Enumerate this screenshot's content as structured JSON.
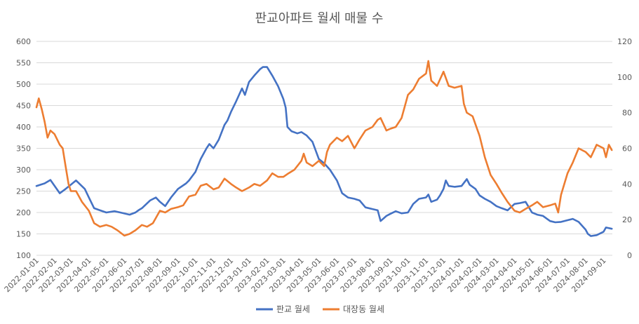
{
  "chart_data": {
    "type": "line",
    "title": "판교아파트 월세 매물 수",
    "xlabel": "",
    "ylabel": "",
    "y_left": {
      "min": 100,
      "max": 600,
      "ticks": [
        "100",
        "150",
        "200",
        "250",
        "300",
        "350",
        "400",
        "450",
        "500",
        "550",
        "600"
      ]
    },
    "y_right": {
      "min": 0,
      "max": 120,
      "ticks": [
        "0",
        "20",
        "40",
        "60",
        "80",
        "100",
        "120"
      ]
    },
    "x_ticks": [
      "2022-01-01",
      "2022-02-01",
      "2022-03-01",
      "2022-04-01",
      "2022-05-01",
      "2022-06-01",
      "2022-07-01",
      "2022-08-01",
      "2022-09-01",
      "2022-10-01",
      "2022-11-01",
      "2022-12-01",
      "2023-01-01",
      "2023-02-01",
      "2023-03-01",
      "2023-04-01",
      "2023-05-01",
      "2023-06-01",
      "2023-07-01",
      "2023-08-01",
      "2023-09-01",
      "2023-10-01",
      "2023-11-01",
      "2023-12-01",
      "2024-01-01",
      "2024-02-01",
      "2024-03-01",
      "2024-04-01",
      "2024-05-01",
      "2024-06-01",
      "2024-07-01",
      "2024-08-01",
      "2024-09-01"
    ],
    "grid": true,
    "legend_position": "bottom",
    "series": [
      {
        "name": "판교 월세",
        "axis": "left",
        "color": "#4472C4",
        "points": [
          [
            "2022-01-01",
            262
          ],
          [
            "2022-01-15",
            268
          ],
          [
            "2022-01-25",
            276
          ],
          [
            "2022-02-10",
            245
          ],
          [
            "2022-02-20",
            255
          ],
          [
            "2022-03-01",
            265
          ],
          [
            "2022-03-10",
            275
          ],
          [
            "2022-03-25",
            255
          ],
          [
            "2022-04-01",
            235
          ],
          [
            "2022-04-10",
            210
          ],
          [
            "2022-04-20",
            205
          ],
          [
            "2022-05-01",
            200
          ],
          [
            "2022-05-15",
            203
          ],
          [
            "2022-05-25",
            200
          ],
          [
            "2022-06-10",
            195
          ],
          [
            "2022-06-20",
            200
          ],
          [
            "2022-06-25",
            205
          ],
          [
            "2022-07-01",
            210
          ],
          [
            "2022-07-15",
            228
          ],
          [
            "2022-07-25",
            235
          ],
          [
            "2022-08-01",
            225
          ],
          [
            "2022-08-10",
            215
          ],
          [
            "2022-08-20",
            235
          ],
          [
            "2022-09-01",
            255
          ],
          [
            "2022-09-15",
            268
          ],
          [
            "2022-09-20",
            275
          ],
          [
            "2022-10-01",
            295
          ],
          [
            "2022-10-10",
            325
          ],
          [
            "2022-10-20",
            350
          ],
          [
            "2022-10-25",
            360
          ],
          [
            "2022-11-01",
            350
          ],
          [
            "2022-11-10",
            370
          ],
          [
            "2022-11-20",
            405
          ],
          [
            "2022-11-25",
            415
          ],
          [
            "2022-12-01",
            435
          ],
          [
            "2022-12-10",
            460
          ],
          [
            "2022-12-20",
            490
          ],
          [
            "2022-12-25",
            475
          ],
          [
            "2023-01-01",
            505
          ],
          [
            "2023-01-10",
            520
          ],
          [
            "2023-01-20",
            535
          ],
          [
            "2023-01-25",
            540
          ],
          [
            "2023-02-01",
            540
          ],
          [
            "2023-02-10",
            520
          ],
          [
            "2023-02-20",
            495
          ],
          [
            "2023-03-01",
            465
          ],
          [
            "2023-03-05",
            445
          ],
          [
            "2023-03-08",
            400
          ],
          [
            "2023-03-15",
            390
          ],
          [
            "2023-03-25",
            385
          ],
          [
            "2023-04-01",
            388
          ],
          [
            "2023-04-10",
            380
          ],
          [
            "2023-04-20",
            365
          ],
          [
            "2023-05-01",
            325
          ],
          [
            "2023-05-10",
            315
          ],
          [
            "2023-05-20",
            300
          ],
          [
            "2023-06-01",
            275
          ],
          [
            "2023-06-10",
            245
          ],
          [
            "2023-06-20",
            235
          ],
          [
            "2023-07-01",
            232
          ],
          [
            "2023-07-10",
            228
          ],
          [
            "2023-07-20",
            212
          ],
          [
            "2023-08-01",
            208
          ],
          [
            "2023-08-10",
            205
          ],
          [
            "2023-08-15",
            180
          ],
          [
            "2023-08-25",
            192
          ],
          [
            "2023-09-01",
            197
          ],
          [
            "2023-09-10",
            203
          ],
          [
            "2023-09-20",
            198
          ],
          [
            "2023-10-01",
            200
          ],
          [
            "2023-10-10",
            220
          ],
          [
            "2023-10-20",
            232
          ],
          [
            "2023-11-01",
            235
          ],
          [
            "2023-11-05",
            242
          ],
          [
            "2023-11-10",
            225
          ],
          [
            "2023-11-20",
            230
          ],
          [
            "2023-11-25",
            240
          ],
          [
            "2023-12-01",
            255
          ],
          [
            "2023-12-05",
            275
          ],
          [
            "2023-12-10",
            262
          ],
          [
            "2023-12-20",
            260
          ],
          [
            "2024-01-01",
            262
          ],
          [
            "2024-01-10",
            278
          ],
          [
            "2024-01-15",
            265
          ],
          [
            "2024-01-25",
            255
          ],
          [
            "2024-02-01",
            240
          ],
          [
            "2024-02-10",
            232
          ],
          [
            "2024-02-20",
            225
          ],
          [
            "2024-03-01",
            215
          ],
          [
            "2024-03-10",
            210
          ],
          [
            "2024-03-20",
            205
          ],
          [
            "2024-04-01",
            220
          ],
          [
            "2024-04-10",
            222
          ],
          [
            "2024-04-20",
            225
          ],
          [
            "2024-05-01",
            200
          ],
          [
            "2024-05-10",
            195
          ],
          [
            "2024-05-20",
            192
          ],
          [
            "2024-06-01",
            180
          ],
          [
            "2024-06-10",
            177
          ],
          [
            "2024-06-20",
            178
          ],
          [
            "2024-07-01",
            182
          ],
          [
            "2024-07-10",
            185
          ],
          [
            "2024-07-20",
            178
          ],
          [
            "2024-08-01",
            160
          ],
          [
            "2024-08-05",
            150
          ],
          [
            "2024-08-10",
            145
          ],
          [
            "2024-08-20",
            147
          ],
          [
            "2024-09-01",
            155
          ],
          [
            "2024-09-05",
            165
          ],
          [
            "2024-09-15",
            162
          ]
        ]
      },
      {
        "name": "대장동 월세",
        "axis": "right",
        "color": "#ED7D31",
        "points": [
          [
            "2022-01-01",
            83
          ],
          [
            "2022-01-05",
            88
          ],
          [
            "2022-01-10",
            82
          ],
          [
            "2022-01-15",
            75
          ],
          [
            "2022-01-20",
            66
          ],
          [
            "2022-01-25",
            70
          ],
          [
            "2022-02-01",
            68
          ],
          [
            "2022-02-10",
            62
          ],
          [
            "2022-02-15",
            60
          ],
          [
            "2022-02-20",
            50
          ],
          [
            "2022-02-25",
            40
          ],
          [
            "2022-03-01",
            36
          ],
          [
            "2022-03-10",
            36
          ],
          [
            "2022-03-20",
            30
          ],
          [
            "2022-04-01",
            25
          ],
          [
            "2022-04-10",
            18
          ],
          [
            "2022-04-20",
            16
          ],
          [
            "2022-05-01",
            17
          ],
          [
            "2022-05-10",
            16
          ],
          [
            "2022-05-20",
            14
          ],
          [
            "2022-06-01",
            11
          ],
          [
            "2022-06-10",
            12
          ],
          [
            "2022-06-20",
            14
          ],
          [
            "2022-07-01",
            17
          ],
          [
            "2022-07-10",
            16
          ],
          [
            "2022-07-20",
            18
          ],
          [
            "2022-08-01",
            25
          ],
          [
            "2022-08-10",
            24
          ],
          [
            "2022-08-20",
            26
          ],
          [
            "2022-09-01",
            27
          ],
          [
            "2022-09-10",
            28
          ],
          [
            "2022-09-20",
            33
          ],
          [
            "2022-10-01",
            34
          ],
          [
            "2022-10-10",
            39
          ],
          [
            "2022-10-20",
            40
          ],
          [
            "2022-11-01",
            37
          ],
          [
            "2022-11-10",
            38
          ],
          [
            "2022-11-20",
            43
          ],
          [
            "2022-12-01",
            40
          ],
          [
            "2022-12-10",
            38
          ],
          [
            "2022-12-20",
            36
          ],
          [
            "2023-01-01",
            38
          ],
          [
            "2023-01-10",
            40
          ],
          [
            "2023-01-20",
            39
          ],
          [
            "2023-02-01",
            42
          ],
          [
            "2023-02-10",
            46
          ],
          [
            "2023-02-20",
            44
          ],
          [
            "2023-03-01",
            44
          ],
          [
            "2023-03-10",
            46
          ],
          [
            "2023-03-20",
            48
          ],
          [
            "2023-04-01",
            53
          ],
          [
            "2023-04-05",
            57
          ],
          [
            "2023-04-10",
            52
          ],
          [
            "2023-04-20",
            50
          ],
          [
            "2023-05-01",
            53
          ],
          [
            "2023-05-10",
            50
          ],
          [
            "2023-05-15",
            58
          ],
          [
            "2023-05-20",
            62
          ],
          [
            "2023-06-01",
            66
          ],
          [
            "2023-06-10",
            64
          ],
          [
            "2023-06-20",
            67
          ],
          [
            "2023-07-01",
            60
          ],
          [
            "2023-07-10",
            65
          ],
          [
            "2023-07-20",
            70
          ],
          [
            "2023-08-01",
            72
          ],
          [
            "2023-08-10",
            76
          ],
          [
            "2023-08-15",
            77
          ],
          [
            "2023-08-25",
            70
          ],
          [
            "2023-09-01",
            71
          ],
          [
            "2023-09-10",
            72
          ],
          [
            "2023-09-20",
            77
          ],
          [
            "2023-10-01",
            90
          ],
          [
            "2023-10-10",
            93
          ],
          [
            "2023-10-20",
            99
          ],
          [
            "2023-11-01",
            102
          ],
          [
            "2023-11-05",
            109
          ],
          [
            "2023-11-10",
            98
          ],
          [
            "2023-11-20",
            95
          ],
          [
            "2023-12-01",
            103
          ],
          [
            "2023-12-10",
            95
          ],
          [
            "2023-12-20",
            94
          ],
          [
            "2024-01-01",
            95
          ],
          [
            "2024-01-05",
            85
          ],
          [
            "2024-01-10",
            80
          ],
          [
            "2024-01-20",
            78
          ],
          [
            "2024-02-01",
            67
          ],
          [
            "2024-02-10",
            55
          ],
          [
            "2024-02-20",
            45
          ],
          [
            "2024-03-01",
            40
          ],
          [
            "2024-03-10",
            35
          ],
          [
            "2024-03-20",
            30
          ],
          [
            "2024-04-01",
            25
          ],
          [
            "2024-04-10",
            24
          ],
          [
            "2024-04-20",
            26
          ],
          [
            "2024-05-01",
            28
          ],
          [
            "2024-05-10",
            30
          ],
          [
            "2024-05-20",
            27
          ],
          [
            "2024-06-01",
            28
          ],
          [
            "2024-06-10",
            29
          ],
          [
            "2024-06-15",
            24
          ],
          [
            "2024-06-20",
            34
          ],
          [
            "2024-07-01",
            46
          ],
          [
            "2024-07-10",
            52
          ],
          [
            "2024-07-20",
            60
          ],
          [
            "2024-08-01",
            58
          ],
          [
            "2024-08-10",
            55
          ],
          [
            "2024-08-20",
            62
          ],
          [
            "2024-09-01",
            60
          ],
          [
            "2024-09-05",
            55
          ],
          [
            "2024-09-10",
            62
          ],
          [
            "2024-09-15",
            59
          ]
        ]
      }
    ]
  }
}
